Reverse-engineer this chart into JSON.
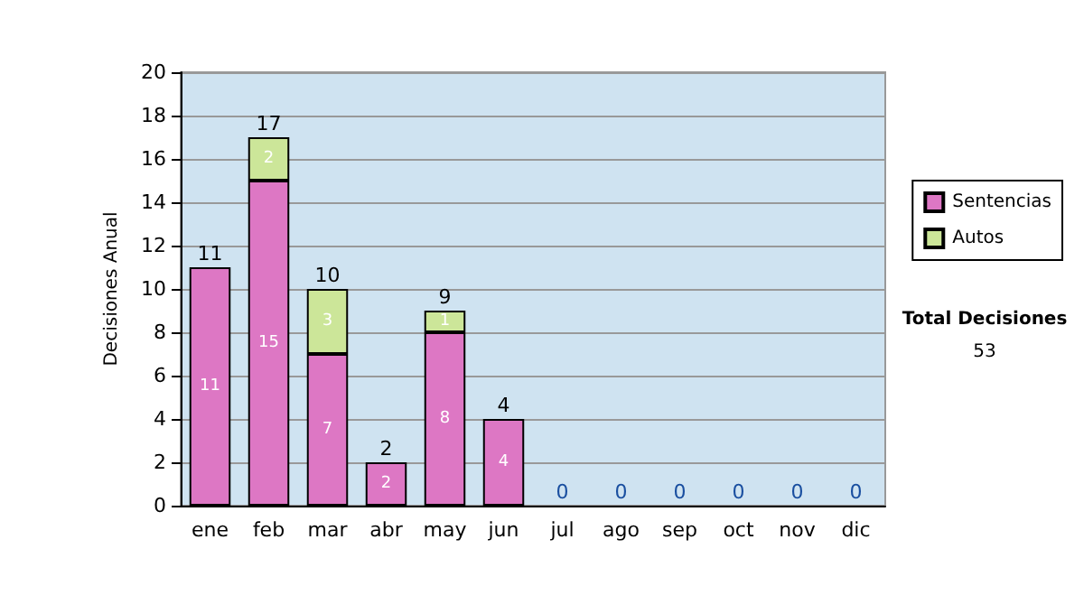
{
  "chart_data": {
    "type": "bar",
    "stacked": true,
    "ylabel": "Decisiones Anual",
    "categories": [
      "ene",
      "feb",
      "mar",
      "abr",
      "may",
      "jun",
      "jul",
      "ago",
      "sep",
      "oct",
      "nov",
      "dic"
    ],
    "series": [
      {
        "name": "Sentencias",
        "color": "#dd77c4",
        "values": [
          11,
          15,
          7,
          2,
          8,
          4,
          0,
          0,
          0,
          0,
          0,
          0
        ],
        "value_labels": [
          "11",
          "15",
          "7",
          "2",
          "8",
          "4",
          null,
          null,
          null,
          null,
          null,
          null
        ]
      },
      {
        "name": "Autos",
        "color": "#cce699",
        "values": [
          0,
          2,
          3,
          0,
          1,
          0,
          0,
          0,
          0,
          0,
          0,
          0
        ],
        "value_labels": [
          null,
          "2",
          "3",
          null,
          "1",
          null,
          null,
          null,
          null,
          null,
          null,
          null
        ]
      }
    ],
    "totals": [
      "11",
      "17",
      "10",
      "2",
      "9",
      "4",
      "0",
      "0",
      "0",
      "0",
      "0",
      "0"
    ],
    "ylim": [
      0,
      20
    ],
    "yticks": [
      0,
      2,
      4,
      6,
      8,
      10,
      12,
      14,
      16,
      18,
      20
    ],
    "grid": "y",
    "legend": "right",
    "annotations": [
      "Total Decisiones",
      "53"
    ]
  }
}
